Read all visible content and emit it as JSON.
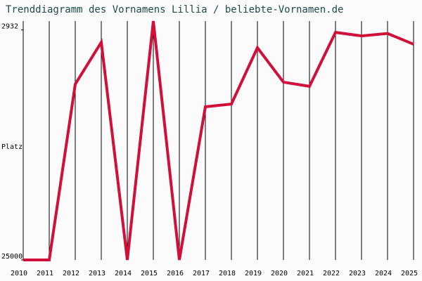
{
  "chart_data": {
    "type": "line",
    "title": "Trenddiagramm des Vornamens Lillia / beliebte-Vornamen.de",
    "y_label": "Platz",
    "categories": [
      "2010",
      "2011",
      "2012",
      "2013",
      "2014",
      "2015",
      "2016",
      "2017",
      "2018",
      "2019",
      "2020",
      "2021",
      "2022",
      "2023",
      "2024",
      "2025"
    ],
    "series": [
      {
        "name": "Lillia",
        "color": "#d0103a",
        "values": [
          25000,
          25000,
          4860,
          3290,
          25000,
          2700,
          25000,
          6000,
          5850,
          3460,
          4770,
          4960,
          3000,
          3100,
          3030,
          3350
        ]
      }
    ],
    "ylim": [
      25000,
      2700
    ],
    "yticks": [
      2932,
      25000
    ],
    "log_scale": true,
    "grid": true,
    "grid_color": "#000000"
  }
}
